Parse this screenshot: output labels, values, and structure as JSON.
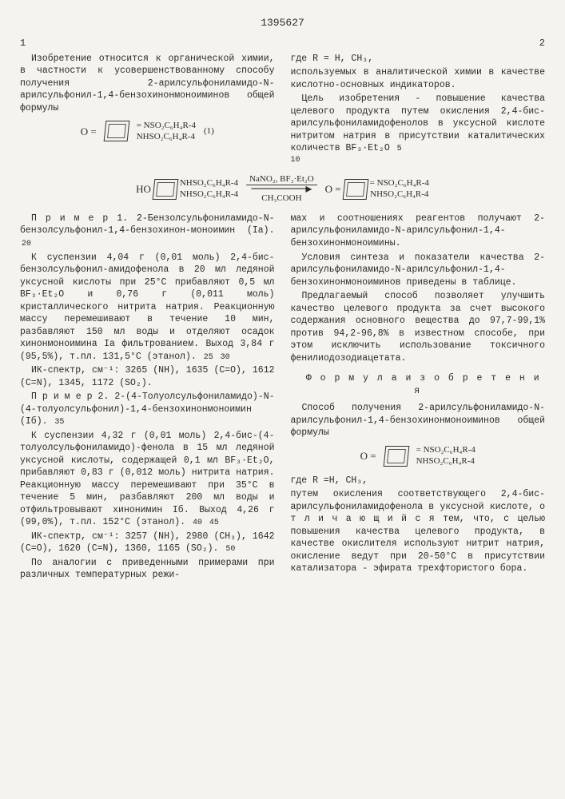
{
  "doc_number": "1395627",
  "colnum_left": "1",
  "colnum_right": "2",
  "margin_nums": {
    "a": "5",
    "b": "10",
    "c": "20",
    "d": "25",
    "e": "30",
    "f": "35",
    "g": "40",
    "h": "45",
    "i": "50"
  },
  "left_top": {
    "p1": "Изобретение относится к органической химии, в частности к усовершенствованному способу получения 2-арилсульфониламидо-N-арилсульфонил-1,4-бензохинонмоноиминов общей формулы"
  },
  "formula1": {
    "left_O": "O =",
    "subst1": "= NSO₂C₆H₄R-4",
    "subst2": "NHSO₂C₆H₄R-4",
    "tag": "(1)"
  },
  "right_top": {
    "p1": "где R = H, CH₃,",
    "p2": "используемых в аналитической химии в качестве кислотно-основных индикаторов.",
    "p3": "Цель изобретения - повышение качества целевого продукта путем окисления 2,4-бис-арилсульфониламидофенолов в уксусной кислоте нитритом натрия в присутствии каталитических количеств BF₃·Et₂O"
  },
  "reaction": {
    "start_HO": "HO",
    "sub1": "NHSO₂C₆H₄R-4",
    "sub2": "NHSO₂C₆H₄R-4",
    "reag_top": "NaNO₂, BF₃·Et₂O",
    "reag_bot": "CH₃COOH",
    "prod_O": "O =",
    "prod_sub1": "= NSO₂C₆H₄R-4",
    "prod_sub2": "NHSO₂C₆H₄R-4"
  },
  "ex1": {
    "head": "П р и м е р   1.  2-Бензолсульфониламидо-N-бензолсульфонил-1,4-бензохинон-моноимин (Ia).",
    "p1": "К суспензии 4,04 г (0,01 моль) 2,4-бис-бензолсульфонил-амидофенола в 20 мл ледяной уксусной кислоты при 25°С прибавляют 0,5 мл BF₃·Et₂O и 0,76 г (0,011 моль) кристаллического нитрита натрия. Реакционную массу перемешивают в течение 10 мин, разбавляют 150 мл воды и отделяют осадок хинонмоноимина Ia фильтрованием. Выход 3,84 г (95,5%), т.пл. 131,5°С (этанол).",
    "p2": "ИК-спектр, см⁻¹: 3265 (NH), 1635 (C=O), 1612 (C=N), 1345, 1172 (SO₂)."
  },
  "ex2": {
    "head": "П р и м е р   2.  2-(4-Толуолсульфониламидо)-N-(4-толуолсульфонил)-1,4-бензохинонмоноимин (Iб).",
    "p1": "К суспензии 4,32 г (0,01 моль) 2,4-бис-(4-толуолсульфониламидо)-фенола в 15 мл ледяной уксусной кислоты, содержащей 0,1 мл BF₃·Et₂O, прибавляют 0,83 г (0,012 моль) нитрита натрия. Реакционную массу перемешивают при 35°С в течение 5 мин, разбавляют 200 мл воды и отфильтровывают хинонимин Iб. Выход 4,26 г (99,0%), т.пл. 152°С (этанол).",
    "p2": "ИК-спектр, см⁻¹: 3257 (NH), 2980 (CH₃), 1642 (C=O), 1620 (C=N), 1360, 1165 (SO₂).",
    "p3": "По аналогии с приведенными примерами при различных температурных режи-"
  },
  "right_bottom": {
    "p1": "мах и соотношениях реагентов получают 2-арилсульфониламидо-N-арилсульфонил-1,4-бензохинонмоноимины.",
    "p2": "Условия синтеза и показатели качества 2-арилсульфониламидо-N-арилсульфонил-1,4-бензохинонмоноиминов приведены в таблице.",
    "p3": "Предлагаемый способ позволяет улучшить качество целевого продукта за счет высокого содержания основного вещества до 97,7-99,1% против 94,2-96,8% в известном способе, при этом исключить использование токсичного фенилиодозодиацетата."
  },
  "claims": {
    "title": "Ф о р м у л а   и з о б р е т е н и я",
    "p1": "Способ получения 2-арилсульфониламидо-N-арилсульфонил-1,4-бензохинонмоноиминов общей формулы",
    "f_O": "O =",
    "f_s1": "= NSO₂C₆H₄R-4",
    "f_s2": "NHSO₂C₆H₄R-4",
    "p2": "где R =H, CH₃,",
    "p3": "путем окисления соответствующего 2,4-бис-арилсульфониламидофенола в уксусной кислоте, о т л и ч а ю щ и й с я тем, что, с целью повышения качества целевого продукта, в качестве окислителя используют нитрит натрия, окисление ведут при 20-50°С в присутствии катализатора - эфирата трехфтористого бора."
  }
}
